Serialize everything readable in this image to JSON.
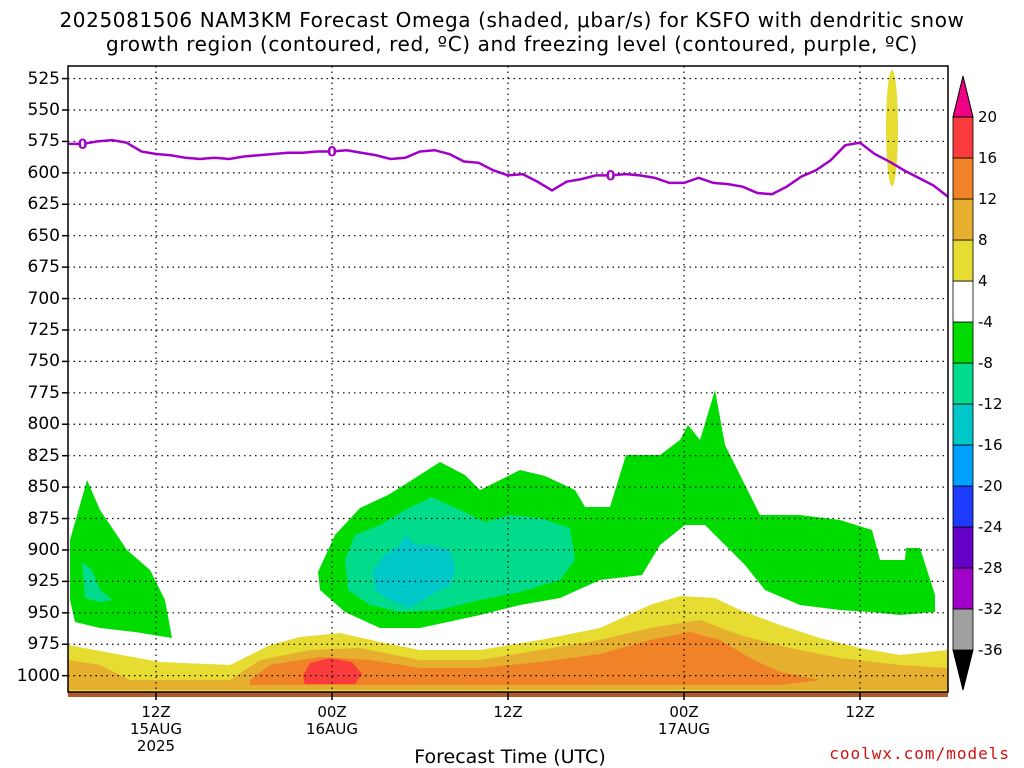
{
  "title": {
    "line1": "2025081506 NAM3KM Forecast Omega (shaded, μbar/s) for KSFO with dendritic snow",
    "line2": "growth region (contoured, red, ºC) and freezing level (contoured, purple, ºC)"
  },
  "x_axis_title": "Forecast Time (UTC)",
  "credit": "coolwx.com/models",
  "colors": {
    "freezing_line": "#a000c8",
    "grid": "#000000",
    "cb": [
      "#000000",
      "#a0a0a0",
      "#a000c8",
      "#6400c8",
      "#1e3cff",
      "#00a0ff",
      "#00c8c8",
      "#00dc8c",
      "#00dc00",
      "#ffffff",
      "#e6dc32",
      "#e6af2d",
      "#f08228",
      "#fa3c3c",
      "#f00082"
    ]
  },
  "chart_data": {
    "type": "heatmap",
    "title": "2025081506 NAM3KM Forecast Omega (shaded, μbar/s) for KSFO with dendritic snow growth region (contoured, red, ºC) and freezing level (contoured, purple, ºC)",
    "xlabel": "Forecast Time (UTC)",
    "ylabel": "",
    "x_ticks": [
      {
        "hour": 12,
        "label": "12Z",
        "sub": "15AUG",
        "sub2": "2025"
      },
      {
        "hour": 24,
        "label": "00Z",
        "sub": "16AUG",
        "sub2": ""
      },
      {
        "hour": 36,
        "label": "12Z",
        "sub": "",
        "sub2": ""
      },
      {
        "hour": 48,
        "label": "00Z",
        "sub": "17AUG",
        "sub2": ""
      },
      {
        "hour": 60,
        "label": "12Z",
        "sub": "",
        "sub2": ""
      }
    ],
    "xlim_hours": [
      6,
      66
    ],
    "y_ticks": [
      525,
      550,
      575,
      600,
      625,
      650,
      675,
      700,
      725,
      750,
      775,
      800,
      825,
      850,
      875,
      900,
      925,
      950,
      975,
      1000
    ],
    "ylim_hpa": [
      515,
      1013
    ],
    "colorbar": {
      "labels": [
        "20",
        "16",
        "12",
        "8",
        "4",
        "-4",
        "-8",
        "-12",
        "-16",
        "-20",
        "-24",
        "-28",
        "-32",
        "-36"
      ]
    },
    "freezing_level": {
      "contour_label": "0",
      "hour": [
        6,
        7,
        8,
        9,
        10,
        11,
        12,
        13,
        14,
        15,
        16,
        17,
        18,
        19,
        20,
        21,
        22,
        23,
        24,
        25,
        26,
        27,
        28,
        29,
        30,
        31,
        32,
        33,
        34,
        35,
        36,
        37,
        38,
        39,
        40,
        41,
        42,
        43,
        44,
        45,
        46,
        47,
        48,
        49,
        50,
        51,
        52,
        53,
        54,
        55,
        56,
        57,
        58,
        59,
        60,
        61,
        62,
        63,
        64,
        65,
        66
      ],
      "pressure": [
        577,
        577,
        575,
        574,
        576,
        583,
        585,
        586,
        588,
        589,
        588,
        589,
        587,
        586,
        585,
        584,
        584,
        583,
        583,
        582,
        584,
        586,
        589,
        588,
        583,
        582,
        585,
        591,
        592,
        598,
        602,
        601,
        607,
        614,
        607,
        605,
        602,
        602,
        601,
        602,
        604,
        608,
        608,
        604,
        608,
        609,
        611,
        616,
        617,
        611,
        603,
        598,
        590,
        578,
        576,
        585,
        591,
        598,
        604,
        610,
        619
      ],
      "label_hours": [
        7,
        24,
        43
      ]
    },
    "omega_regions": [
      {
        "range": "-4 to -8",
        "color": "#00dc00",
        "description": "upward motion region 15AUG early"
      },
      {
        "range": "-4 to -8",
        "color": "#00dc00",
        "description": "upward motion region 16AUG-17AUG mid levels"
      },
      {
        "range": "-8 to -12",
        "color": "#00dc8c"
      },
      {
        "range": "-12 to -16",
        "color": "#00c8c8"
      },
      {
        "range": "4 to 8",
        "color": "#e6dc32"
      },
      {
        "range": "8 to 12",
        "color": "#e6af2d"
      },
      {
        "range": "12 to 16",
        "color": "#f08228"
      },
      {
        "range": "16 to 20",
        "color": "#fa3c3c"
      },
      {
        "range": "terrain",
        "color": "#b05a28"
      }
    ]
  }
}
